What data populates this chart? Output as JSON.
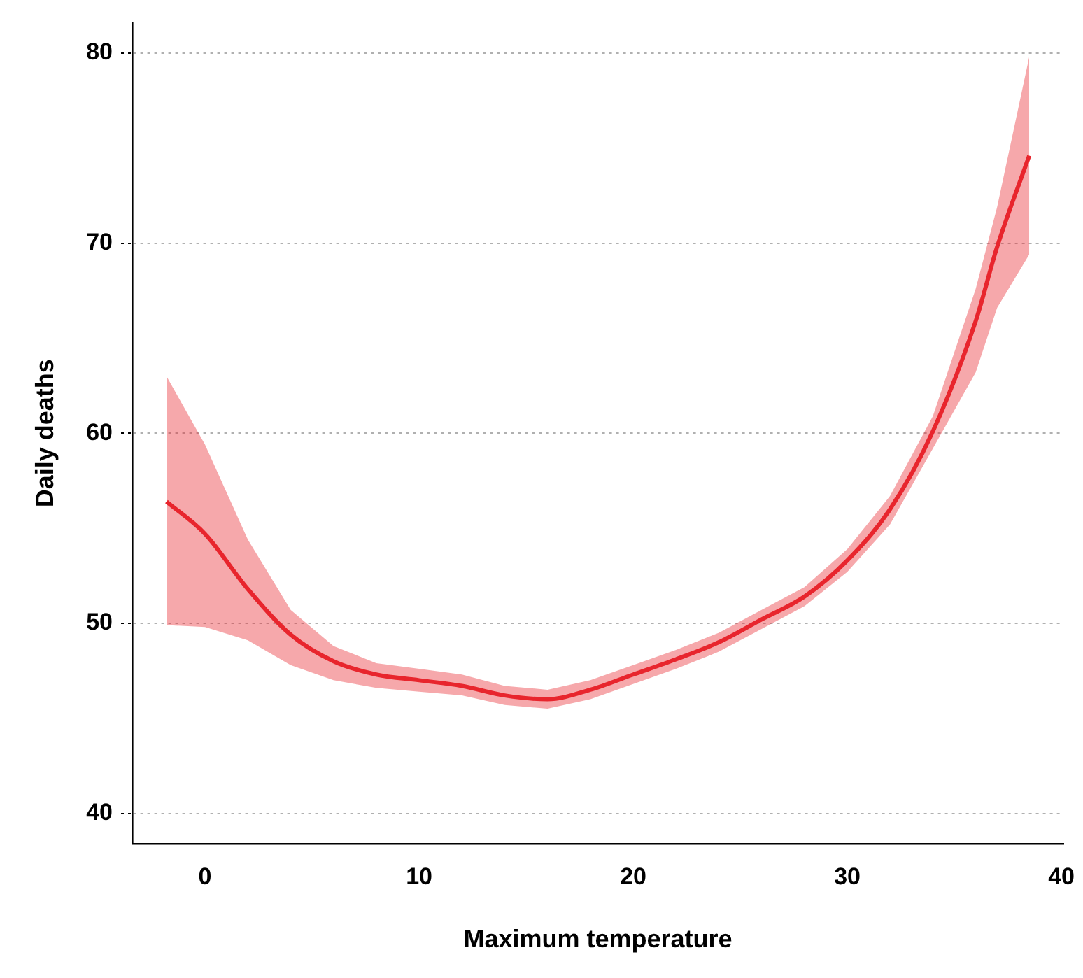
{
  "chart_data": {
    "type": "line",
    "xlabel": "Maximum temperature",
    "ylabel": "Daily deaths",
    "xlim": [
      -3.4,
      40.1
    ],
    "ylim": [
      38.4,
      81.6
    ],
    "xticks": [
      0,
      10,
      20,
      30,
      40
    ],
    "yticks": [
      40,
      50,
      60,
      70,
      80
    ],
    "grid": "y",
    "marker": "none",
    "line_style": "solid",
    "series": [
      {
        "color": "#e8262e",
        "x": [
          -1.8,
          0,
          2,
          4,
          6,
          8,
          10,
          12,
          14,
          16,
          18,
          20,
          22,
          24,
          26,
          28,
          30,
          32,
          34,
          36,
          37,
          38.5
        ],
        "values": [
          56.4,
          54.7,
          51.8,
          49.4,
          48.0,
          47.3,
          47.0,
          46.7,
          46.2,
          46.0,
          46.5,
          47.3,
          48.1,
          49.0,
          50.2,
          51.4,
          53.3,
          56.0,
          60.1,
          65.9,
          69.8,
          74.6
        ],
        "lower": [
          49.9,
          49.8,
          49.1,
          47.8,
          47.0,
          46.6,
          46.4,
          46.2,
          45.7,
          45.5,
          46.0,
          46.8,
          47.6,
          48.5,
          49.7,
          50.9,
          52.7,
          55.2,
          59.2,
          63.2,
          66.6,
          69.4
        ],
        "upper": [
          63.0,
          59.4,
          54.4,
          50.7,
          48.8,
          47.9,
          47.6,
          47.3,
          46.7,
          46.5,
          47.0,
          47.8,
          48.6,
          49.5,
          50.7,
          51.9,
          53.9,
          56.7,
          60.9,
          67.6,
          71.9,
          79.8
        ]
      }
    ]
  }
}
